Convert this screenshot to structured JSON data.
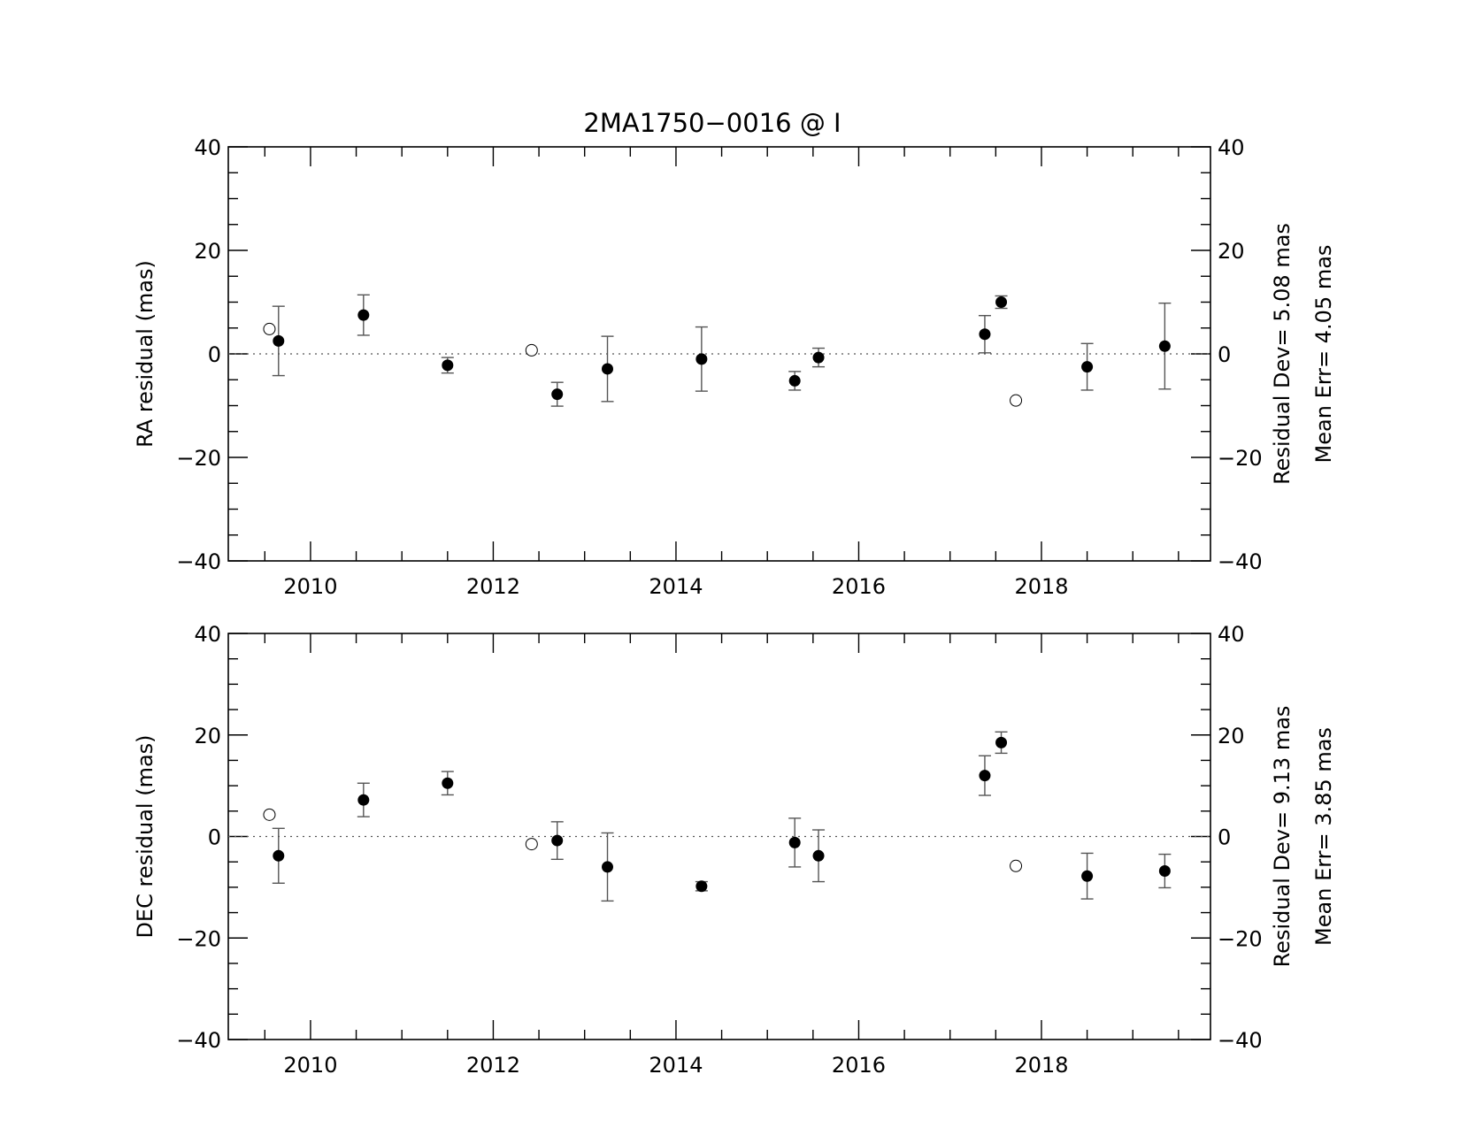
{
  "figure": {
    "title": "2MA1750−0016 @ I"
  },
  "chart_data": [
    {
      "type": "scatter",
      "ylabel": "RA residual (mas)",
      "xlabel": "",
      "xlim": [
        2009.1,
        2019.85
      ],
      "ylim": [
        -40,
        40
      ],
      "xticks": [
        "2010",
        "2012",
        "2014",
        "2016",
        "2018"
      ],
      "yticks": [
        "40",
        "20",
        "0",
        "−20",
        "−40"
      ],
      "zero_line": "dotted",
      "stats": {
        "residual_dev": "Residual Dev=   5.08  mas",
        "mean_err": "Mean  Err=  4.05  mas"
      },
      "series": [
        {
          "marker": "filled-circle",
          "points": [
            {
              "x": 2009.65,
              "y": 2.5,
              "err": 6.7
            },
            {
              "x": 2010.58,
              "y": 7.5,
              "err": 3.9
            },
            {
              "x": 2011.5,
              "y": -2.2,
              "err": 1.5
            },
            {
              "x": 2012.7,
              "y": -7.8,
              "err": 2.3
            },
            {
              "x": 2013.25,
              "y": -2.9,
              "err": 6.3
            },
            {
              "x": 2014.28,
              "y": -1.0,
              "err": 6.2
            },
            {
              "x": 2015.3,
              "y": -5.2,
              "err": 1.8
            },
            {
              "x": 2015.56,
              "y": -0.7,
              "err": 1.8
            },
            {
              "x": 2017.38,
              "y": 3.8,
              "err": 3.6
            },
            {
              "x": 2017.56,
              "y": 10.0,
              "err": 1.2
            },
            {
              "x": 2018.5,
              "y": -2.5,
              "err": 4.5
            },
            {
              "x": 2019.35,
              "y": 1.5,
              "err": 8.3
            }
          ]
        },
        {
          "marker": "open-circle",
          "points": [
            {
              "x": 2009.55,
              "y": 4.8
            },
            {
              "x": 2012.42,
              "y": 0.7
            },
            {
              "x": 2017.72,
              "y": -9.0
            }
          ]
        }
      ]
    },
    {
      "type": "scatter",
      "ylabel": "DEC residual (mas)",
      "xlabel": "",
      "xlim": [
        2009.1,
        2019.85
      ],
      "ylim": [
        -40,
        40
      ],
      "xticks": [
        "2010",
        "2012",
        "2014",
        "2016",
        "2018"
      ],
      "yticks": [
        "40",
        "20",
        "0",
        "−20",
        "−40"
      ],
      "zero_line": "dotted",
      "stats": {
        "residual_dev": "Residual Dev=   9.13  mas",
        "mean_err": "Mean  Err=  3.85  mas"
      },
      "series": [
        {
          "marker": "filled-circle",
          "points": [
            {
              "x": 2009.65,
              "y": -3.8,
              "err": 5.4
            },
            {
              "x": 2010.58,
              "y": 7.2,
              "err": 3.3
            },
            {
              "x": 2011.5,
              "y": 10.5,
              "err": 2.3
            },
            {
              "x": 2012.7,
              "y": -0.8,
              "err": 3.7
            },
            {
              "x": 2013.25,
              "y": -6.0,
              "err": 6.7
            },
            {
              "x": 2014.28,
              "y": -9.8,
              "err": 0.9
            },
            {
              "x": 2015.3,
              "y": -1.2,
              "err": 4.8
            },
            {
              "x": 2015.56,
              "y": -3.8,
              "err": 5.1
            },
            {
              "x": 2017.38,
              "y": 12.0,
              "err": 3.9
            },
            {
              "x": 2017.56,
              "y": 18.5,
              "err": 2.1
            },
            {
              "x": 2018.5,
              "y": -7.8,
              "err": 4.5
            },
            {
              "x": 2019.35,
              "y": -6.8,
              "err": 3.3
            }
          ]
        },
        {
          "marker": "open-circle",
          "points": [
            {
              "x": 2009.55,
              "y": 4.3
            },
            {
              "x": 2012.42,
              "y": -1.5
            },
            {
              "x": 2017.72,
              "y": -5.8
            }
          ]
        }
      ]
    }
  ]
}
